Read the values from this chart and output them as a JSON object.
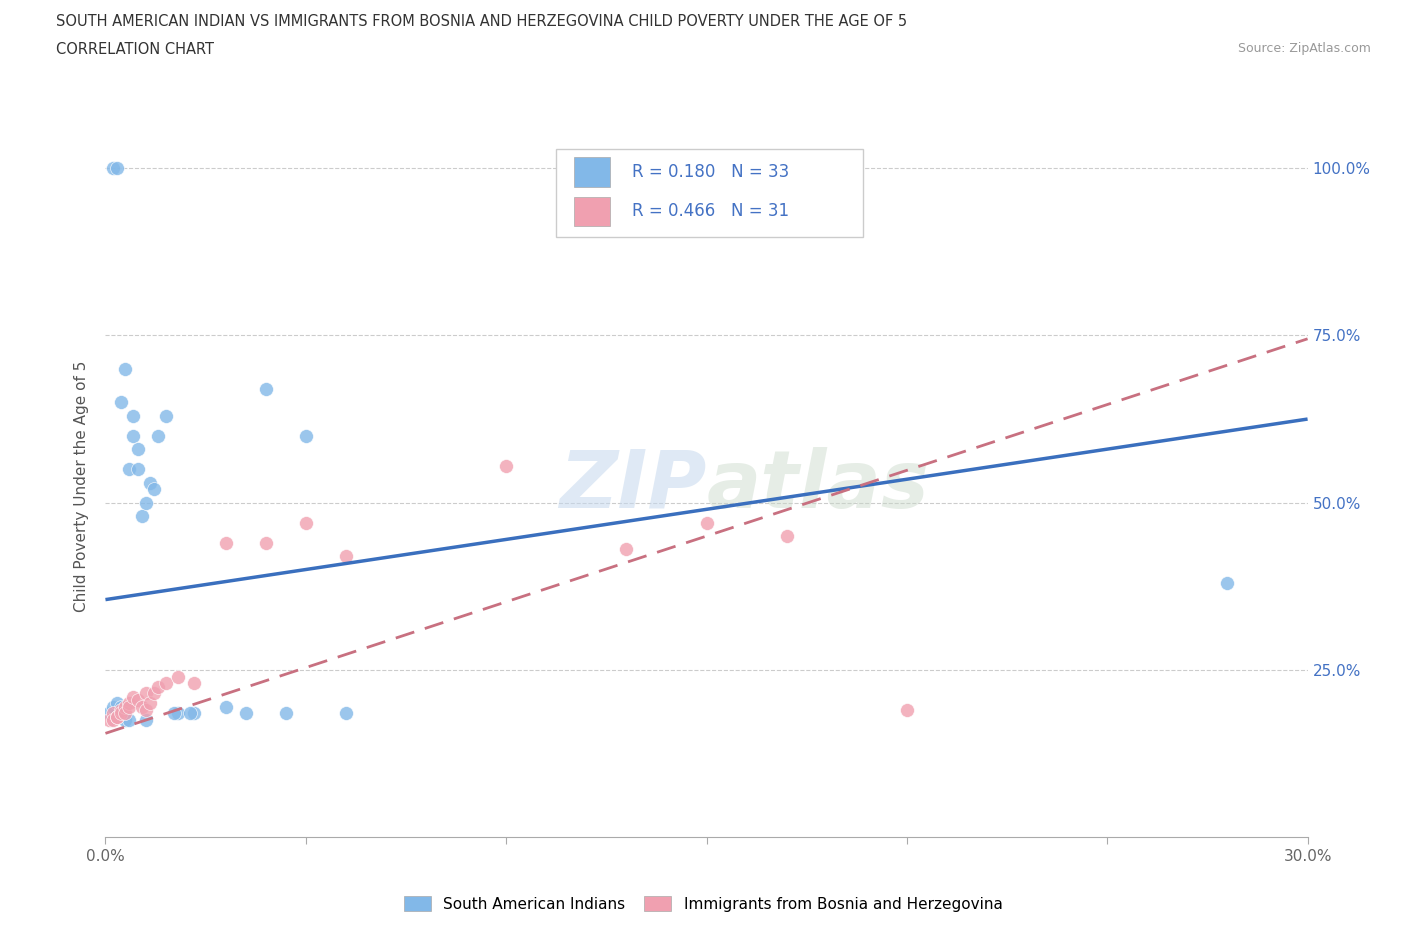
{
  "title_line1": "SOUTH AMERICAN INDIAN VS IMMIGRANTS FROM BOSNIA AND HERZEGOVINA CHILD POVERTY UNDER THE AGE OF 5",
  "title_line2": "CORRELATION CHART",
  "source_text": "Source: ZipAtlas.com",
  "ylabel": "Child Poverty Under the Age of 5",
  "xlim": [
    0.0,
    0.3
  ],
  "ylim": [
    0.0,
    1.05
  ],
  "x_ticks": [
    0.0,
    0.05,
    0.1,
    0.15,
    0.2,
    0.25,
    0.3
  ],
  "x_tick_labels": [
    "0.0%",
    "",
    "",
    "",
    "",
    "",
    "30.0%"
  ],
  "y_ticks": [
    0.0,
    0.25,
    0.5,
    0.75,
    1.0
  ],
  "y_tick_labels_right": [
    "",
    "25.0%",
    "50.0%",
    "75.0%",
    "100.0%"
  ],
  "R_blue": 0.18,
  "N_blue": 33,
  "R_pink": 0.466,
  "N_pink": 31,
  "blue_scatter_color": "#82b8e8",
  "pink_scatter_color": "#f0a0b0",
  "blue_line_color": "#3a6fbe",
  "pink_line_color": "#c87080",
  "legend_label_blue": "South American Indians",
  "legend_label_pink": "Immigrants from Bosnia and Herzegovina",
  "blue_scatter_x": [
    0.001,
    0.002,
    0.002,
    0.003,
    0.003,
    0.004,
    0.004,
    0.005,
    0.005,
    0.006,
    0.006,
    0.007,
    0.007,
    0.008,
    0.008,
    0.009,
    0.01,
    0.01,
    0.011,
    0.012,
    0.013,
    0.015,
    0.018,
    0.022,
    0.03,
    0.035,
    0.04,
    0.05,
    0.06,
    0.28,
    0.021,
    0.017,
    0.045
  ],
  "blue_scatter_y": [
    0.185,
    1.0,
    0.195,
    1.0,
    0.2,
    0.195,
    0.65,
    0.7,
    0.175,
    0.55,
    0.175,
    0.6,
    0.63,
    0.58,
    0.55,
    0.48,
    0.5,
    0.175,
    0.53,
    0.52,
    0.6,
    0.63,
    0.185,
    0.185,
    0.195,
    0.185,
    0.67,
    0.6,
    0.185,
    0.38,
    0.185,
    0.185,
    0.185
  ],
  "pink_scatter_x": [
    0.001,
    0.002,
    0.002,
    0.003,
    0.003,
    0.004,
    0.004,
    0.005,
    0.005,
    0.006,
    0.006,
    0.007,
    0.008,
    0.009,
    0.01,
    0.01,
    0.011,
    0.012,
    0.013,
    0.015,
    0.018,
    0.022,
    0.03,
    0.04,
    0.05,
    0.06,
    0.1,
    0.13,
    0.15,
    0.17,
    0.2
  ],
  "pink_scatter_y": [
    0.175,
    0.185,
    0.175,
    0.18,
    0.18,
    0.19,
    0.185,
    0.195,
    0.185,
    0.2,
    0.195,
    0.21,
    0.205,
    0.195,
    0.215,
    0.19,
    0.2,
    0.215,
    0.225,
    0.23,
    0.24,
    0.23,
    0.44,
    0.44,
    0.47,
    0.42,
    0.555,
    0.43,
    0.47,
    0.45,
    0.19
  ],
  "blue_line_x0": 0.0,
  "blue_line_y0": 0.355,
  "blue_line_x1": 0.3,
  "blue_line_y1": 0.625,
  "pink_line_x0": 0.0,
  "pink_line_y0": 0.155,
  "pink_line_x1": 0.3,
  "pink_line_y1": 0.745
}
